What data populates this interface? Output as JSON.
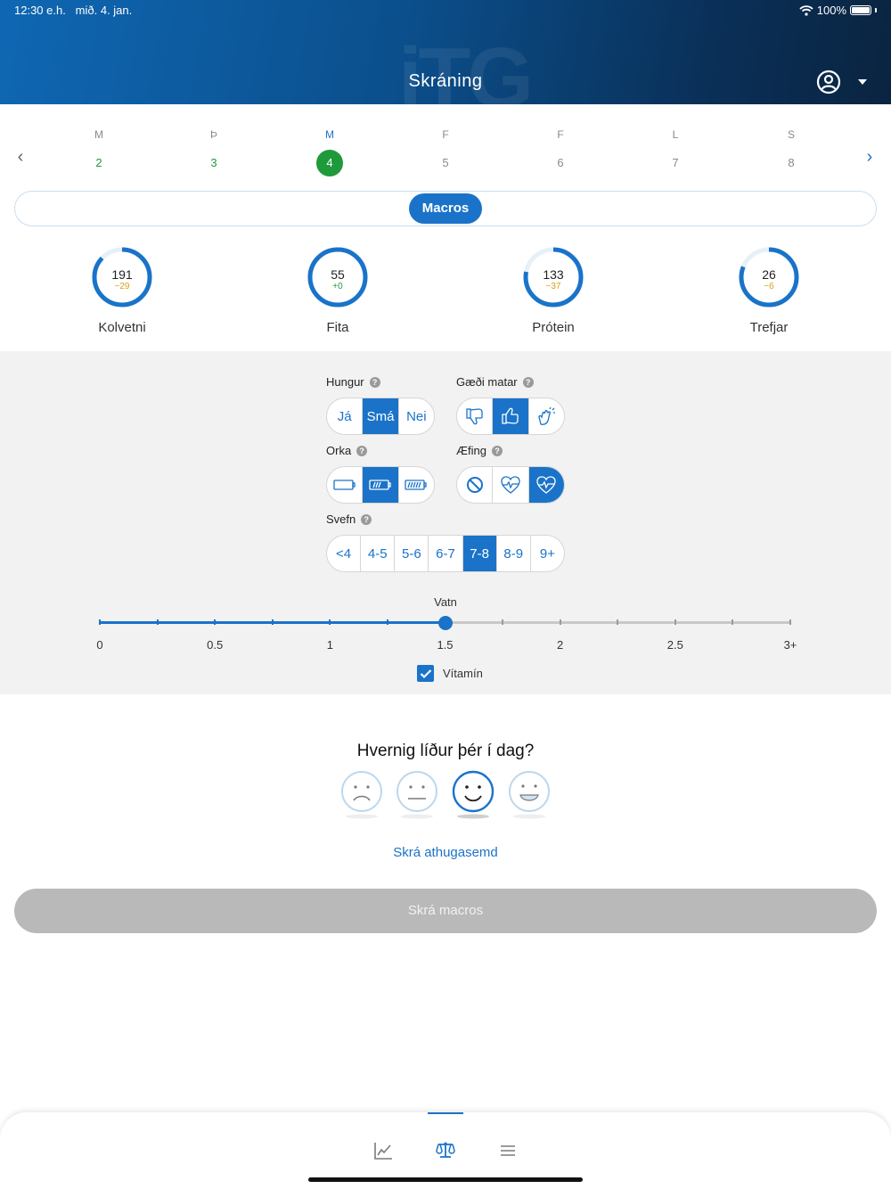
{
  "status_bar": {
    "time": "12:30 e.h.",
    "date": "mið. 4. jan.",
    "battery": "100%"
  },
  "header": {
    "title": "Skráning",
    "watermark": "iTG"
  },
  "week": {
    "days": [
      {
        "letter": "M",
        "number": "2",
        "state": "done"
      },
      {
        "letter": "Þ",
        "number": "3",
        "state": "done"
      },
      {
        "letter": "M",
        "number": "4",
        "state": "active"
      },
      {
        "letter": "F",
        "number": "5",
        "state": "future"
      },
      {
        "letter": "F",
        "number": "6",
        "state": "future"
      },
      {
        "letter": "L",
        "number": "7",
        "state": "future"
      },
      {
        "letter": "S",
        "number": "8",
        "state": "future"
      }
    ]
  },
  "segment": {
    "selected_label": "Macros"
  },
  "macros": [
    {
      "label": "Kolvetni",
      "value": "191",
      "diff": "−29",
      "diff_color": "#d4a017",
      "progress": 0.87
    },
    {
      "label": "Fita",
      "value": "55",
      "diff": "+0",
      "diff_color": "#1f9a3a",
      "progress": 1.0
    },
    {
      "label": "Prótein",
      "value": "133",
      "diff": "−37",
      "diff_color": "#d4a017",
      "progress": 0.78
    },
    {
      "label": "Trefjar",
      "value": "26",
      "diff": "−6",
      "diff_color": "#d4a017",
      "progress": 0.81
    }
  ],
  "questions": {
    "hunger": {
      "label": "Hungur",
      "options": [
        "Já",
        "Smá",
        "Nei"
      ],
      "selected": 1
    },
    "food_quality": {
      "label": "Gæði matar",
      "options": [
        "thumbs-down-icon",
        "thumbs-up-icon",
        "clapping-hands-icon"
      ],
      "selected": 1
    },
    "energy": {
      "label": "Orka",
      "options": [
        "battery-empty-icon",
        "battery-half-icon",
        "battery-full-icon"
      ],
      "selected": 1
    },
    "exercise": {
      "label": "Æfing",
      "options": [
        "no-exercise-icon",
        "heart-pulse-outline-icon",
        "heart-pulse-filled-icon"
      ],
      "selected": 2
    },
    "sleep": {
      "label": "Svefn",
      "options": [
        "<4",
        "4-5",
        "5-6",
        "6-7",
        "7-8",
        "8-9",
        "9+"
      ],
      "selected": 4
    }
  },
  "water": {
    "label": "Vatn",
    "value": 1.5,
    "min": 0,
    "max": 3,
    "labels": [
      "0",
      "0.5",
      "1",
      "1.5",
      "2",
      "2.5",
      "3+"
    ]
  },
  "vitamin": {
    "label": "Vítamín",
    "checked": true
  },
  "mood": {
    "question": "Hvernig líður þér í dag?",
    "options": [
      "sad-face-icon",
      "neutral-face-icon",
      "smile-face-icon",
      "happy-face-icon"
    ],
    "selected": 2
  },
  "note_link": "Skrá athugasemd",
  "submit_label": "Skrá macros",
  "colors": {
    "accent": "#1a73c9",
    "green": "#1f9a3a",
    "warning": "#d4a017",
    "disabled": "#b9b9b9"
  },
  "bottom_nav": {
    "items": [
      "chart-icon",
      "scale-icon",
      "menu-icon"
    ],
    "active": 1
  }
}
